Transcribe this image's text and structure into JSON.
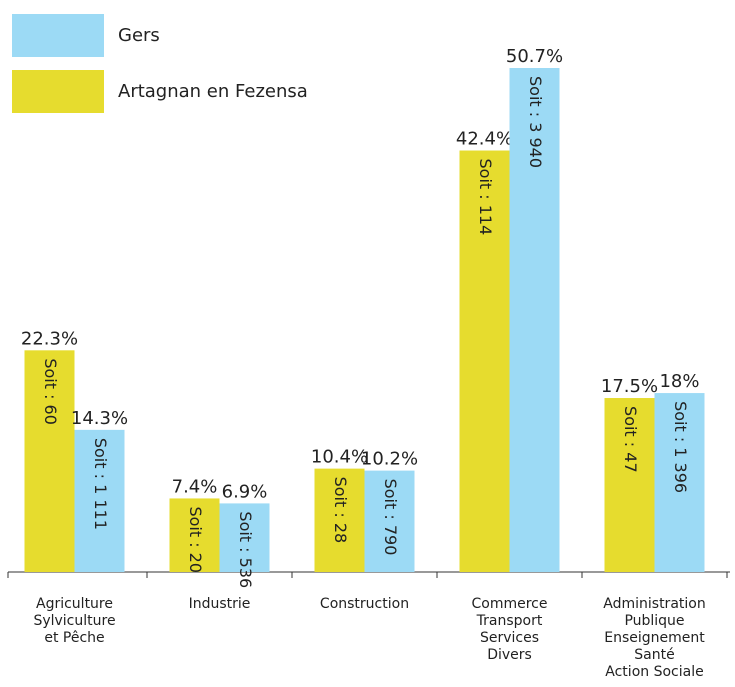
{
  "chart_data": {
    "type": "bar",
    "categories": [
      [
        "Agriculture",
        "Sylviculture",
        "et Pêche"
      ],
      [
        "Industrie"
      ],
      [
        "Construction"
      ],
      [
        "Commerce",
        "Transport",
        "Services",
        "Divers"
      ],
      [
        "Administration",
        "Publique",
        "Enseignement",
        "Santé",
        "Action Sociale"
      ]
    ],
    "series": [
      {
        "name": "Artagnan en Fezensa",
        "color": "#e6dc2e",
        "values": [
          22.3,
          7.4,
          10.4,
          42.4,
          17.5
        ],
        "value_labels": [
          "22.3%",
          "7.4%",
          "10.4%",
          "42.4%",
          "17.5%"
        ],
        "inner_labels": [
          "Soit : 60",
          "Soit : 20",
          "Soit : 28",
          "Soit : 114",
          "Soit : 47"
        ]
      },
      {
        "name": "Gers",
        "color": "#9cdaf5",
        "values": [
          14.3,
          6.9,
          10.2,
          50.7,
          18
        ],
        "value_labels": [
          "14.3%",
          "6.9%",
          "10.2%",
          "50.7%",
          "18%"
        ],
        "inner_labels": [
          "Soit : 1 111",
          "Soit : 536",
          "Soit : 790",
          "Soit : 3 940",
          "Soit : 1 396"
        ]
      }
    ],
    "legend_order": [
      1,
      0
    ]
  }
}
